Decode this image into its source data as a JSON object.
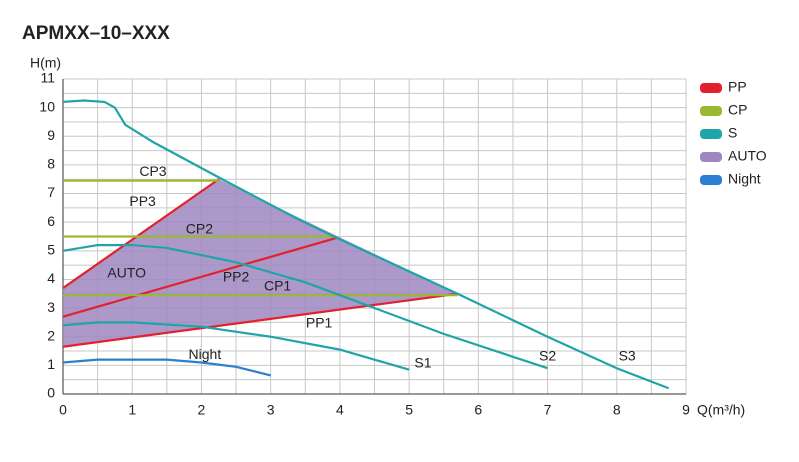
{
  "chart_data": {
    "type": "line",
    "title": "APMXX–10–XXX",
    "y_label": "H(m)",
    "x_label": "Q(m³/h)",
    "xlim": [
      0,
      9
    ],
    "ylim": [
      0,
      11
    ],
    "xticks": [
      0,
      1,
      2,
      3,
      4,
      5,
      6,
      7,
      8,
      9
    ],
    "yticks": [
      0,
      1,
      2,
      3,
      4,
      5,
      6,
      7,
      8,
      9,
      10,
      11
    ],
    "grid": true,
    "legend": "right",
    "series": [
      {
        "name": "PP",
        "color": "#e3212d",
        "lines": [
          {
            "label": "PP1",
            "x": [
              0,
              5.7
            ],
            "values": [
              1.65,
              3.5
            ]
          },
          {
            "label": "PP2",
            "x": [
              0,
              3.95
            ],
            "values": [
              2.7,
              5.45
            ]
          },
          {
            "label": "PP3",
            "x": [
              0,
              2.25
            ],
            "values": [
              3.7,
              7.5
            ]
          }
        ]
      },
      {
        "name": "CP",
        "color": "#9bb832",
        "lines": [
          {
            "label": "CP1",
            "x": [
              0,
              5.7
            ],
            "values": [
              3.45,
              3.45
            ]
          },
          {
            "label": "CP2",
            "x": [
              0,
              3.95
            ],
            "values": [
              5.5,
              5.5
            ]
          },
          {
            "label": "CP3",
            "x": [
              0,
              2.25
            ],
            "values": [
              7.45,
              7.45
            ]
          }
        ]
      },
      {
        "name": "S",
        "color": "#1fa5a8",
        "lines": [
          {
            "label": "S1",
            "x": [
              0,
              0.5,
              1,
              2,
              3,
              4,
              4.5,
              5
            ],
            "values": [
              2.4,
              2.5,
              2.5,
              2.35,
              2.0,
              1.55,
              1.2,
              0.85
            ]
          },
          {
            "label": "S2",
            "x": [
              0,
              0.5,
              1,
              1.5,
              2.5,
              3.5,
              4.5,
              5.5,
              6.5,
              7
            ],
            "values": [
              5.0,
              5.2,
              5.2,
              5.1,
              4.6,
              3.9,
              3.0,
              2.1,
              1.3,
              0.9
            ]
          },
          {
            "label": "S3",
            "x": [
              0,
              0.3,
              0.6,
              0.75,
              0.9,
              1.3,
              2.3,
              3.4,
              4,
              5.7,
              7,
              8,
              8.75
            ],
            "values": [
              10.2,
              10.25,
              10.2,
              10.0,
              9.4,
              8.8,
              7.5,
              6.1,
              5.4,
              3.5,
              2.0,
              0.9,
              0.2
            ]
          }
        ]
      },
      {
        "name": "AUTO",
        "color": "#9e86c0",
        "area": {
          "x": [
            0,
            2.25,
            5.7,
            0
          ],
          "values": [
            3.7,
            7.5,
            3.5,
            1.65
          ]
        }
      },
      {
        "name": "Night",
        "color": "#2a7fd0",
        "lines": [
          {
            "x": [
              0,
              0.5,
              1,
              1.5,
              2,
              2.5,
              3
            ],
            "values": [
              1.1,
              1.2,
              1.2,
              1.2,
              1.1,
              0.95,
              0.65
            ]
          }
        ]
      }
    ]
  }
}
